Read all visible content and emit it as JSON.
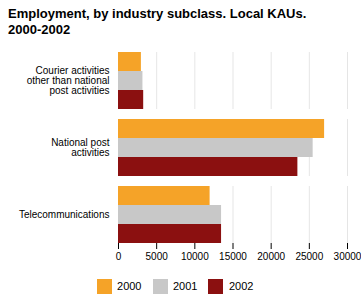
{
  "chart_data": {
    "type": "bar",
    "orientation": "horizontal",
    "title": "Employment, by industry subclass. Local KAUs.\n2000-2002",
    "categories": [
      "Telecommunications",
      "National post\nactivities",
      "Courier activities\nother than national\npost activities"
    ],
    "series": [
      {
        "name": "2000",
        "color": "#F5A328",
        "values": [
          12000,
          27000,
          3000
        ]
      },
      {
        "name": "2001",
        "color": "#C8C8C8",
        "values": [
          13500,
          25500,
          3200
        ]
      },
      {
        "name": "2002",
        "color": "#8B1010",
        "values": [
          13500,
          23500,
          3300
        ]
      }
    ],
    "xlim": [
      0,
      30000
    ],
    "xticks": [
      0,
      5000,
      10000,
      15000,
      20000,
      25000,
      30000
    ],
    "grid": true,
    "legend": "bottom"
  }
}
